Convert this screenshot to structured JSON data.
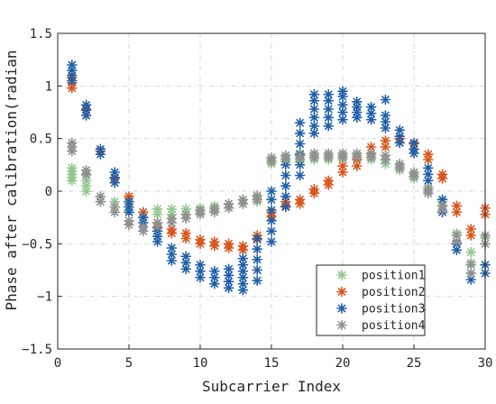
{
  "chart_data": {
    "type": "scatter",
    "xlabel": "Subcarrier Index",
    "ylabel": "Phase after calibration(radian",
    "xlim": [
      0,
      30
    ],
    "ylim": [
      -1.5,
      1.5
    ],
    "xticks": [
      0,
      5,
      10,
      15,
      20,
      25,
      30
    ],
    "xtick_labels": [
      "0",
      "5",
      "10",
      "15",
      "20",
      "25",
      "30"
    ],
    "yticks": [
      -1.5,
      -1,
      -0.5,
      0,
      0.5,
      1,
      1.5
    ],
    "ytick_labels": [
      "−1.5",
      "−1",
      "−0.5",
      "0",
      "0.5",
      "1",
      "1.5"
    ],
    "grid": true,
    "legend_position": "bottom-right",
    "marker": "asterisk",
    "series": [
      {
        "name": "position1",
        "color": "#92c78f",
        "points": [
          [
            1,
            0.1
          ],
          [
            1,
            0.13
          ],
          [
            1,
            0.16
          ],
          [
            1,
            0.19
          ],
          [
            1,
            0.22
          ],
          [
            2,
            0.0
          ],
          [
            2,
            0.05
          ],
          [
            2,
            0.1
          ],
          [
            2,
            0.15
          ],
          [
            3,
            -0.1
          ],
          [
            3,
            -0.05
          ],
          [
            4,
            -0.15
          ],
          [
            4,
            -0.1
          ],
          [
            5,
            -0.18
          ],
          [
            5,
            -0.12
          ],
          [
            5,
            -0.07
          ],
          [
            6,
            -0.25
          ],
          [
            6,
            -0.2
          ],
          [
            7,
            -0.22
          ],
          [
            7,
            -0.17
          ],
          [
            8,
            -0.22
          ],
          [
            8,
            -0.17
          ],
          [
            9,
            -0.22
          ],
          [
            9,
            -0.17
          ],
          [
            10,
            -0.2
          ],
          [
            10,
            -0.16
          ],
          [
            11,
            -0.18
          ],
          [
            11,
            -0.14
          ],
          [
            12,
            -0.16
          ],
          [
            12,
            -0.12
          ],
          [
            13,
            -0.12
          ],
          [
            13,
            -0.08
          ],
          [
            14,
            -0.1
          ],
          [
            14,
            -0.06
          ],
          [
            15,
            0.26
          ],
          [
            15,
            0.3
          ],
          [
            16,
            0.28
          ],
          [
            16,
            0.32
          ],
          [
            17,
            0.28
          ],
          [
            17,
            0.32
          ],
          [
            17,
            0.36
          ],
          [
            18,
            0.3
          ],
          [
            18,
            0.34
          ],
          [
            19,
            0.3
          ],
          [
            19,
            0.34
          ],
          [
            20,
            0.3
          ],
          [
            20,
            0.34
          ],
          [
            21,
            0.3
          ],
          [
            21,
            0.34
          ],
          [
            22,
            0.3
          ],
          [
            22,
            0.34
          ],
          [
            23,
            0.26
          ],
          [
            23,
            0.3
          ],
          [
            24,
            0.2
          ],
          [
            24,
            0.24
          ],
          [
            25,
            0.12
          ],
          [
            25,
            0.16
          ],
          [
            26,
            0.0
          ],
          [
            26,
            0.04
          ],
          [
            27,
            -0.14
          ],
          [
            27,
            -0.1
          ],
          [
            28,
            -0.5
          ],
          [
            28,
            -0.4
          ],
          [
            29,
            -0.68
          ],
          [
            29,
            -0.58
          ],
          [
            30,
            -0.5
          ],
          [
            30,
            -0.44
          ]
        ]
      },
      {
        "name": "position2",
        "color": "#d95319",
        "points": [
          [
            1,
            0.98
          ],
          [
            1,
            1.03
          ],
          [
            1,
            1.08
          ],
          [
            2,
            0.72
          ],
          [
            2,
            0.78
          ],
          [
            3,
            0.38
          ],
          [
            4,
            0.12
          ],
          [
            5,
            -0.1
          ],
          [
            5,
            -0.05
          ],
          [
            6,
            -0.25
          ],
          [
            6,
            -0.2
          ],
          [
            7,
            -0.35
          ],
          [
            7,
            -0.3
          ],
          [
            8,
            -0.4
          ],
          [
            8,
            -0.36
          ],
          [
            9,
            -0.45
          ],
          [
            9,
            -0.4
          ],
          [
            10,
            -0.5
          ],
          [
            10,
            -0.46
          ],
          [
            11,
            -0.52
          ],
          [
            11,
            -0.48
          ],
          [
            12,
            -0.54
          ],
          [
            12,
            -0.5
          ],
          [
            13,
            -0.56
          ],
          [
            13,
            -0.52
          ],
          [
            14,
            -0.46
          ],
          [
            14,
            -0.42
          ],
          [
            15,
            -0.24
          ],
          [
            15,
            -0.2
          ],
          [
            16,
            -0.14
          ],
          [
            16,
            -0.1
          ],
          [
            17,
            -0.12
          ],
          [
            17,
            -0.08
          ],
          [
            18,
            -0.02
          ],
          [
            18,
            0.02
          ],
          [
            19,
            0.06
          ],
          [
            19,
            0.1
          ],
          [
            20,
            0.18
          ],
          [
            20,
            0.24
          ],
          [
            21,
            0.24
          ],
          [
            21,
            0.3
          ],
          [
            22,
            0.36
          ],
          [
            22,
            0.42
          ],
          [
            23,
            0.42
          ],
          [
            23,
            0.48
          ],
          [
            24,
            0.46
          ],
          [
            24,
            0.5
          ],
          [
            25,
            0.4
          ],
          [
            25,
            0.45
          ],
          [
            26,
            0.3
          ],
          [
            26,
            0.35
          ],
          [
            27,
            0.12
          ],
          [
            27,
            0.16
          ],
          [
            28,
            -0.2
          ],
          [
            28,
            -0.14
          ],
          [
            29,
            -0.42
          ],
          [
            29,
            -0.36
          ],
          [
            30,
            -0.22
          ],
          [
            30,
            -0.16
          ]
        ]
      },
      {
        "name": "position3",
        "color": "#1f5fa8",
        "points": [
          [
            1,
            1.05
          ],
          [
            1,
            1.1
          ],
          [
            1,
            1.15
          ],
          [
            1,
            1.2
          ],
          [
            2,
            0.72
          ],
          [
            2,
            0.77
          ],
          [
            2,
            0.82
          ],
          [
            3,
            0.35
          ],
          [
            3,
            0.4
          ],
          [
            4,
            0.08
          ],
          [
            4,
            0.13
          ],
          [
            4,
            0.18
          ],
          [
            5,
            -0.2
          ],
          [
            5,
            -0.15
          ],
          [
            5,
            -0.1
          ],
          [
            6,
            -0.3
          ],
          [
            6,
            -0.25
          ],
          [
            7,
            -0.48
          ],
          [
            7,
            -0.43
          ],
          [
            7,
            -0.38
          ],
          [
            8,
            -0.66
          ],
          [
            8,
            -0.6
          ],
          [
            8,
            -0.54
          ],
          [
            9,
            -0.74
          ],
          [
            9,
            -0.68
          ],
          [
            9,
            -0.62
          ],
          [
            10,
            -0.82
          ],
          [
            10,
            -0.76
          ],
          [
            10,
            -0.7
          ],
          [
            11,
            -0.88
          ],
          [
            11,
            -0.82
          ],
          [
            11,
            -0.76
          ],
          [
            12,
            -0.92
          ],
          [
            12,
            -0.86
          ],
          [
            12,
            -0.8
          ],
          [
            12,
            -0.74
          ],
          [
            13,
            -0.94
          ],
          [
            13,
            -0.88
          ],
          [
            13,
            -0.82
          ],
          [
            13,
            -0.76
          ],
          [
            13,
            -0.7
          ],
          [
            13,
            -0.64
          ],
          [
            14,
            -0.85
          ],
          [
            14,
            -0.75
          ],
          [
            14,
            -0.65
          ],
          [
            14,
            -0.55
          ],
          [
            14,
            -0.45
          ],
          [
            15,
            -0.48
          ],
          [
            15,
            -0.38
          ],
          [
            15,
            -0.28
          ],
          [
            15,
            -0.18
          ],
          [
            15,
            -0.08
          ],
          [
            15,
            0.0
          ],
          [
            16,
            -0.15
          ],
          [
            16,
            -0.05
          ],
          [
            16,
            0.05
          ],
          [
            16,
            0.15
          ],
          [
            16,
            0.25
          ],
          [
            17,
            0.15
          ],
          [
            17,
            0.25
          ],
          [
            17,
            0.35
          ],
          [
            17,
            0.45
          ],
          [
            17,
            0.55
          ],
          [
            17,
            0.65
          ],
          [
            18,
            0.55
          ],
          [
            18,
            0.62
          ],
          [
            18,
            0.7
          ],
          [
            18,
            0.78
          ],
          [
            18,
            0.86
          ],
          [
            18,
            0.92
          ],
          [
            19,
            0.62
          ],
          [
            19,
            0.7
          ],
          [
            19,
            0.78
          ],
          [
            19,
            0.86
          ],
          [
            19,
            0.92
          ],
          [
            20,
            0.68
          ],
          [
            20,
            0.75
          ],
          [
            20,
            0.82
          ],
          [
            20,
            0.9
          ],
          [
            20,
            0.95
          ],
          [
            21,
            0.7
          ],
          [
            21,
            0.75
          ],
          [
            21,
            0.8
          ],
          [
            21,
            0.85
          ],
          [
            22,
            0.68
          ],
          [
            22,
            0.74
          ],
          [
            22,
            0.8
          ],
          [
            23,
            0.6
          ],
          [
            23,
            0.66
          ],
          [
            23,
            0.72
          ],
          [
            23,
            0.87
          ],
          [
            24,
            0.46
          ],
          [
            24,
            0.52
          ],
          [
            24,
            0.58
          ],
          [
            25,
            0.36
          ],
          [
            25,
            0.4
          ],
          [
            25,
            0.46
          ],
          [
            26,
            0.1
          ],
          [
            26,
            0.16
          ],
          [
            26,
            0.22
          ],
          [
            27,
            -0.2
          ],
          [
            27,
            -0.14
          ],
          [
            27,
            -0.08
          ],
          [
            28,
            -0.56
          ],
          [
            28,
            -0.5
          ],
          [
            29,
            -0.84
          ],
          [
            29,
            -0.78
          ],
          [
            30,
            -0.78
          ],
          [
            30,
            -0.7
          ]
        ]
      },
      {
        "name": "position4",
        "color": "#8f8f8f",
        "points": [
          [
            1,
            0.38
          ],
          [
            1,
            0.42
          ],
          [
            1,
            0.46
          ],
          [
            2,
            0.16
          ],
          [
            2,
            0.2
          ],
          [
            3,
            -0.1
          ],
          [
            3,
            -0.05
          ],
          [
            4,
            -0.2
          ],
          [
            4,
            -0.15
          ],
          [
            5,
            -0.32
          ],
          [
            5,
            -0.28
          ],
          [
            6,
            -0.38
          ],
          [
            6,
            -0.34
          ],
          [
            7,
            -0.34
          ],
          [
            7,
            -0.3
          ],
          [
            8,
            -0.3
          ],
          [
            8,
            -0.26
          ],
          [
            9,
            -0.26
          ],
          [
            9,
            -0.22
          ],
          [
            10,
            -0.22
          ],
          [
            10,
            -0.18
          ],
          [
            11,
            -0.2
          ],
          [
            11,
            -0.16
          ],
          [
            12,
            -0.16
          ],
          [
            12,
            -0.12
          ],
          [
            13,
            -0.12
          ],
          [
            13,
            -0.08
          ],
          [
            14,
            -0.08
          ],
          [
            14,
            -0.04
          ],
          [
            15,
            0.28
          ],
          [
            15,
            0.32
          ],
          [
            16,
            0.3
          ],
          [
            16,
            0.34
          ],
          [
            17,
            0.3
          ],
          [
            17,
            0.34
          ],
          [
            18,
            0.32
          ],
          [
            18,
            0.36
          ],
          [
            19,
            0.32
          ],
          [
            19,
            0.36
          ],
          [
            20,
            0.32
          ],
          [
            20,
            0.36
          ],
          [
            21,
            0.32
          ],
          [
            21,
            0.36
          ],
          [
            22,
            0.32
          ],
          [
            22,
            0.36
          ],
          [
            23,
            0.3
          ],
          [
            23,
            0.34
          ],
          [
            24,
            0.22
          ],
          [
            24,
            0.26
          ],
          [
            25,
            0.14
          ],
          [
            25,
            0.18
          ],
          [
            26,
            -0.02
          ],
          [
            26,
            0.02
          ],
          [
            27,
            -0.18
          ],
          [
            27,
            -0.14
          ],
          [
            28,
            -0.48
          ],
          [
            28,
            -0.42
          ],
          [
            29,
            -0.78
          ],
          [
            29,
            -0.7
          ],
          [
            30,
            -0.5
          ],
          [
            30,
            -0.42
          ]
        ]
      }
    ]
  }
}
